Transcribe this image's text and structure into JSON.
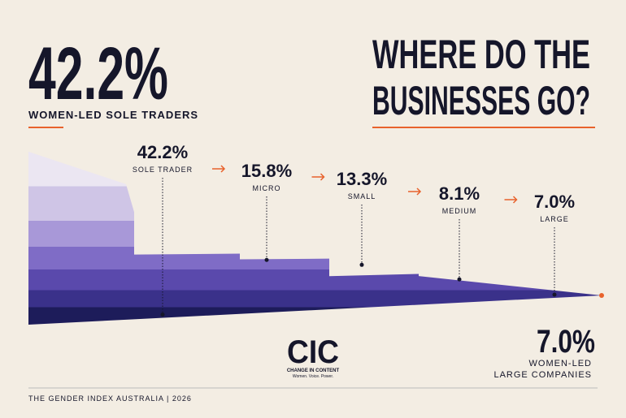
{
  "chart_data": {
    "type": "funnel",
    "title_lines": [
      "WHERE DO THE",
      "BUSINESSES GO?"
    ],
    "categories": [
      "SOLE TRADER",
      "MICRO",
      "SMALL",
      "MEDIUM",
      "LARGE"
    ],
    "values": [
      42.2,
      15.8,
      13.3,
      8.1,
      7.0
    ],
    "value_labels": [
      "42.2%",
      "15.8%",
      "13.3%",
      "8.1%",
      "7.0%"
    ],
    "headline_caption": "WOMEN-LED SOLE TRADERS",
    "end_caption": [
      "WOMEN-LED",
      "LARGE COMPANIES"
    ],
    "accent_color": "#e8622c"
  },
  "logo": {
    "mark": "CIC",
    "name": "CHANGE IN CONTENT",
    "tagline": "Women. Voice. Power."
  },
  "footer": "THE GENDER INDEX AUSTRALIA | 2026"
}
